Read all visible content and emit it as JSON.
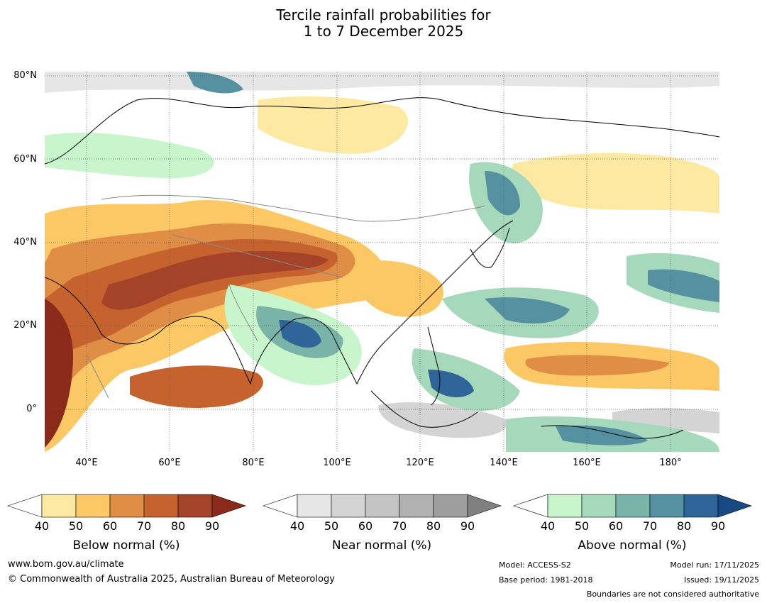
{
  "title": {
    "line1": "Tercile rainfall probabilities for",
    "line2": "1 to 7 December 2025"
  },
  "map": {
    "lat_labels": [
      "80°N",
      "60°N",
      "40°N",
      "20°N",
      "0°"
    ],
    "lon_labels": [
      "40°E",
      "60°E",
      "80°E",
      "100°E",
      "120°E",
      "140°E",
      "160°E",
      "180°"
    ]
  },
  "colorbars": [
    {
      "name": "below",
      "title": "Below normal (%)",
      "ticks": [
        "40",
        "50",
        "60",
        "70",
        "80",
        "90"
      ],
      "colors": [
        "#ffffff",
        "#fde9a2",
        "#fcc865",
        "#e08e45",
        "#c6622e",
        "#a5432a",
        "#8b2a1b"
      ]
    },
    {
      "name": "near",
      "title": "Near normal (%)",
      "ticks": [
        "40",
        "50",
        "60",
        "70",
        "80",
        "90"
      ],
      "colors": [
        "#ffffff",
        "#e6e6e6",
        "#d4d4d4",
        "#c3c3c3",
        "#b1b1b1",
        "#9e9e9e",
        "#808080"
      ]
    },
    {
      "name": "above",
      "title": "Above normal (%)",
      "ticks": [
        "40",
        "50",
        "60",
        "70",
        "80",
        "90"
      ],
      "colors": [
        "#ffffff",
        "#c8f5cc",
        "#a6d9bb",
        "#7ab4a8",
        "#5591a0",
        "#2e6497",
        "#174a84"
      ]
    }
  ],
  "footer": {
    "url": "www.bom.gov.au/climate",
    "copyright": "© Commonwealth of Australia 2025, Australian Bureau of Meteorology",
    "model": "Model: ACCESS-S2",
    "base_period": "Base period: 1981-2018",
    "model_run": "Model run: 17/11/2025",
    "issued": "Issued: 19/11/2025",
    "disclaimer": "Boundaries are not considered authoritative"
  }
}
